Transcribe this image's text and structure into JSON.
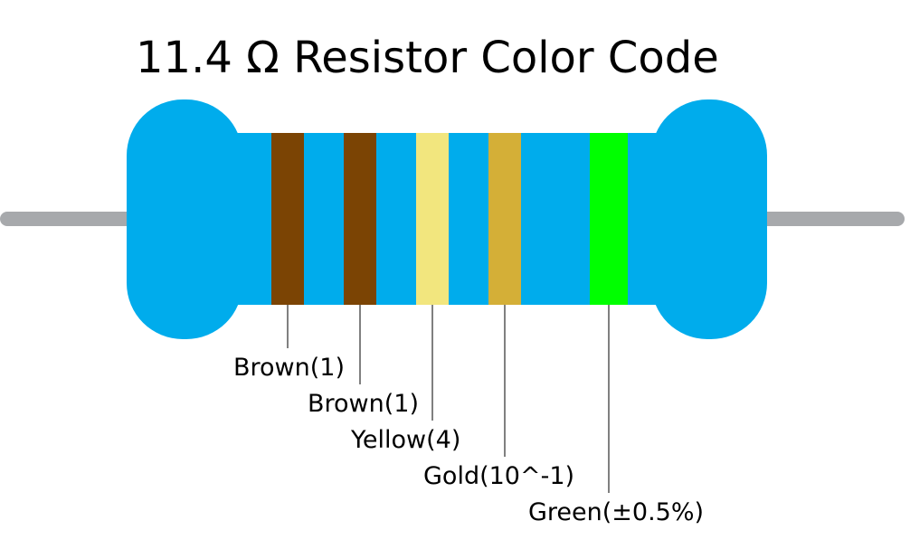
{
  "title": "11.4 Ω Resistor Color Code",
  "bands": [
    {
      "label": "Brown(1)",
      "color": "#7b4404"
    },
    {
      "label": "Brown(1)",
      "color": "#7b4404"
    },
    {
      "label": "Yellow(4)",
      "color": "#f2e67e"
    },
    {
      "label": "Gold(10^-1)",
      "color": "#d4af37"
    },
    {
      "label": "Green(±0.5%)",
      "color": "#00ff00"
    }
  ]
}
